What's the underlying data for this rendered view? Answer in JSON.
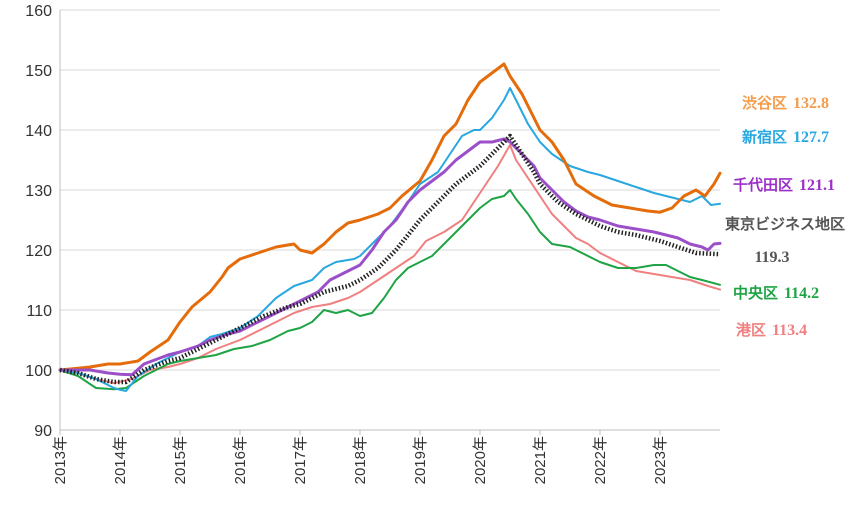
{
  "chart_data": {
    "type": "line",
    "ylim": [
      90,
      160
    ],
    "yticks": [
      "90",
      "100",
      "110",
      "120",
      "130",
      "140",
      "150",
      "160"
    ],
    "xlim": [
      2013.0,
      2024.0
    ],
    "xticks": [
      "2013年",
      "2014年",
      "2015年",
      "2016年",
      "2017年",
      "2018年",
      "2019年",
      "2020年",
      "2021年",
      "2022年",
      "2023年"
    ],
    "series": [
      {
        "name": "渋谷区",
        "value_label": "132.8",
        "color": "#E46C0A",
        "text_color": "#F39C4B",
        "points": [
          [
            2013.0,
            100
          ],
          [
            2013.3,
            100.3
          ],
          [
            2013.5,
            100.5
          ],
          [
            2013.8,
            101
          ],
          [
            2014.0,
            101
          ],
          [
            2014.3,
            101.5
          ],
          [
            2014.5,
            103
          ],
          [
            2014.8,
            105
          ],
          [
            2015.0,
            108
          ],
          [
            2015.2,
            110.5
          ],
          [
            2015.5,
            113
          ],
          [
            2015.7,
            115.5
          ],
          [
            2015.8,
            117
          ],
          [
            2016.0,
            118.5
          ],
          [
            2016.3,
            119.5
          ],
          [
            2016.6,
            120.5
          ],
          [
            2016.9,
            121
          ],
          [
            2017.0,
            120
          ],
          [
            2017.2,
            119.5
          ],
          [
            2017.4,
            121
          ],
          [
            2017.6,
            123
          ],
          [
            2017.8,
            124.5
          ],
          [
            2018.0,
            125
          ],
          [
            2018.3,
            126
          ],
          [
            2018.5,
            127
          ],
          [
            2018.7,
            129
          ],
          [
            2019.0,
            131.5
          ],
          [
            2019.2,
            135
          ],
          [
            2019.4,
            139
          ],
          [
            2019.6,
            141
          ],
          [
            2019.8,
            145
          ],
          [
            2020.0,
            148
          ],
          [
            2020.2,
            149.5
          ],
          [
            2020.4,
            151
          ],
          [
            2020.5,
            149
          ],
          [
            2020.7,
            146
          ],
          [
            2020.9,
            142
          ],
          [
            2021.0,
            140
          ],
          [
            2021.2,
            138
          ],
          [
            2021.4,
            135
          ],
          [
            2021.6,
            131
          ],
          [
            2021.9,
            129
          ],
          [
            2022.2,
            127.5
          ],
          [
            2022.5,
            127
          ],
          [
            2022.8,
            126.5
          ],
          [
            2023.0,
            126.3
          ],
          [
            2023.2,
            127
          ],
          [
            2023.4,
            129
          ],
          [
            2023.6,
            130
          ],
          [
            2023.75,
            129
          ],
          [
            2023.9,
            131
          ],
          [
            2024.0,
            132.8
          ]
        ]
      },
      {
        "name": "新宿区",
        "value_label": "127.7",
        "color": "#29A8E0",
        "text_color": "#29A8E0",
        "points": [
          [
            2013.0,
            100
          ],
          [
            2013.3,
            99.5
          ],
          [
            2013.6,
            98.5
          ],
          [
            2013.9,
            97
          ],
          [
            2014.0,
            96.7
          ],
          [
            2014.1,
            96.5
          ],
          [
            2014.3,
            99
          ],
          [
            2014.6,
            101
          ],
          [
            2015.0,
            103
          ],
          [
            2015.3,
            104
          ],
          [
            2015.5,
            105.5
          ],
          [
            2015.7,
            106
          ],
          [
            2016.0,
            107
          ],
          [
            2016.3,
            109
          ],
          [
            2016.6,
            112
          ],
          [
            2016.9,
            114
          ],
          [
            2017.2,
            115
          ],
          [
            2017.4,
            117
          ],
          [
            2017.6,
            118
          ],
          [
            2017.9,
            118.5
          ],
          [
            2018.0,
            119
          ],
          [
            2018.2,
            121
          ],
          [
            2018.5,
            124
          ],
          [
            2018.8,
            128
          ],
          [
            2019.0,
            131
          ],
          [
            2019.3,
            133
          ],
          [
            2019.5,
            136
          ],
          [
            2019.7,
            139
          ],
          [
            2019.9,
            140
          ],
          [
            2020.0,
            140
          ],
          [
            2020.2,
            142
          ],
          [
            2020.4,
            145
          ],
          [
            2020.5,
            147
          ],
          [
            2020.6,
            145
          ],
          [
            2020.8,
            141
          ],
          [
            2021.0,
            138
          ],
          [
            2021.2,
            136
          ],
          [
            2021.5,
            134
          ],
          [
            2021.8,
            133
          ],
          [
            2022.0,
            132.5
          ],
          [
            2022.3,
            131.5
          ],
          [
            2022.6,
            130.5
          ],
          [
            2022.9,
            129.5
          ],
          [
            2023.1,
            129
          ],
          [
            2023.3,
            128.5
          ],
          [
            2023.5,
            128
          ],
          [
            2023.7,
            129
          ],
          [
            2023.85,
            127.5
          ],
          [
            2024.0,
            127.7
          ]
        ]
      },
      {
        "name": "千代田区",
        "value_label": "121.1",
        "color": "#9B4FC8",
        "text_color": "#9B30C8",
        "points": [
          [
            2013.0,
            100
          ],
          [
            2013.5,
            100
          ],
          [
            2013.8,
            99.5
          ],
          [
            2014.0,
            99.3
          ],
          [
            2014.2,
            99.2
          ],
          [
            2014.4,
            101
          ],
          [
            2014.8,
            102.5
          ],
          [
            2015.0,
            103
          ],
          [
            2015.3,
            104
          ],
          [
            2015.5,
            105
          ],
          [
            2015.8,
            106
          ],
          [
            2016.0,
            106.5
          ],
          [
            2016.3,
            108
          ],
          [
            2016.6,
            109.5
          ],
          [
            2016.9,
            111
          ],
          [
            2017.1,
            112
          ],
          [
            2017.3,
            113
          ],
          [
            2017.5,
            115
          ],
          [
            2017.7,
            116
          ],
          [
            2017.9,
            117
          ],
          [
            2018.0,
            117.5
          ],
          [
            2018.2,
            120
          ],
          [
            2018.4,
            123
          ],
          [
            2018.6,
            125
          ],
          [
            2018.8,
            128
          ],
          [
            2019.0,
            130
          ],
          [
            2019.2,
            131.5
          ],
          [
            2019.4,
            133
          ],
          [
            2019.6,
            135
          ],
          [
            2019.8,
            136.5
          ],
          [
            2020.0,
            138
          ],
          [
            2020.2,
            138
          ],
          [
            2020.4,
            138.5
          ],
          [
            2020.5,
            138
          ],
          [
            2020.7,
            136
          ],
          [
            2020.9,
            134
          ],
          [
            2021.0,
            132
          ],
          [
            2021.2,
            130
          ],
          [
            2021.4,
            128
          ],
          [
            2021.6,
            126.5
          ],
          [
            2021.8,
            125.5
          ],
          [
            2022.0,
            125
          ],
          [
            2022.3,
            124
          ],
          [
            2022.6,
            123.5
          ],
          [
            2022.9,
            123
          ],
          [
            2023.1,
            122.5
          ],
          [
            2023.3,
            122
          ],
          [
            2023.5,
            121
          ],
          [
            2023.7,
            120.5
          ],
          [
            2023.8,
            120
          ],
          [
            2023.9,
            121
          ],
          [
            2024.0,
            121.1
          ]
        ]
      },
      {
        "name": "東京ビジネス地区",
        "value_label": "119.3",
        "color": "#222222",
        "text_color": "#555555",
        "points": [
          [
            2013.0,
            100
          ],
          [
            2013.3,
            99.5
          ],
          [
            2013.6,
            98.5
          ],
          [
            2013.9,
            98
          ],
          [
            2014.1,
            98
          ],
          [
            2014.4,
            100
          ],
          [
            2014.8,
            101.5
          ],
          [
            2015.0,
            102
          ],
          [
            2015.4,
            104
          ],
          [
            2015.8,
            106
          ],
          [
            2016.0,
            107
          ],
          [
            2016.4,
            109
          ],
          [
            2016.8,
            110.5
          ],
          [
            2017.0,
            111
          ],
          [
            2017.4,
            113
          ],
          [
            2017.8,
            114
          ],
          [
            2018.0,
            115
          ],
          [
            2018.3,
            117
          ],
          [
            2018.6,
            120
          ],
          [
            2019.0,
            125
          ],
          [
            2019.3,
            128
          ],
          [
            2019.6,
            131
          ],
          [
            2020.0,
            134
          ],
          [
            2020.2,
            136
          ],
          [
            2020.4,
            138
          ],
          [
            2020.5,
            139
          ],
          [
            2020.7,
            136
          ],
          [
            2020.9,
            133
          ],
          [
            2021.0,
            131
          ],
          [
            2021.3,
            128
          ],
          [
            2021.6,
            126
          ],
          [
            2022.0,
            124
          ],
          [
            2022.3,
            123
          ],
          [
            2022.6,
            122.5
          ],
          [
            2023.0,
            121.5
          ],
          [
            2023.3,
            120.5
          ],
          [
            2023.6,
            119.5
          ],
          [
            2024.0,
            119.3
          ]
        ]
      },
      {
        "name": "中央区",
        "value_label": "114.2",
        "color": "#1EA345",
        "text_color": "#1EA345",
        "points": [
          [
            2013.0,
            100
          ],
          [
            2013.3,
            99
          ],
          [
            2013.6,
            97
          ],
          [
            2013.9,
            96.8
          ],
          [
            2014.1,
            97
          ],
          [
            2014.4,
            99
          ],
          [
            2014.8,
            101
          ],
          [
            2015.0,
            101.5
          ],
          [
            2015.3,
            102
          ],
          [
            2015.6,
            102.5
          ],
          [
            2015.9,
            103.5
          ],
          [
            2016.2,
            104
          ],
          [
            2016.5,
            105
          ],
          [
            2016.8,
            106.5
          ],
          [
            2017.0,
            107
          ],
          [
            2017.2,
            108
          ],
          [
            2017.4,
            110
          ],
          [
            2017.6,
            109.5
          ],
          [
            2017.8,
            110
          ],
          [
            2018.0,
            109
          ],
          [
            2018.2,
            109.5
          ],
          [
            2018.4,
            112
          ],
          [
            2018.6,
            115
          ],
          [
            2018.8,
            117
          ],
          [
            2019.0,
            118
          ],
          [
            2019.2,
            119
          ],
          [
            2019.4,
            121
          ],
          [
            2019.6,
            123
          ],
          [
            2019.8,
            125
          ],
          [
            2020.0,
            127
          ],
          [
            2020.2,
            128.5
          ],
          [
            2020.4,
            129
          ],
          [
            2020.5,
            130
          ],
          [
            2020.6,
            128.5
          ],
          [
            2020.8,
            126
          ],
          [
            2021.0,
            123
          ],
          [
            2021.2,
            121
          ],
          [
            2021.5,
            120.5
          ],
          [
            2021.8,
            119
          ],
          [
            2022.0,
            118
          ],
          [
            2022.3,
            117
          ],
          [
            2022.6,
            117
          ],
          [
            2022.9,
            117.5
          ],
          [
            2023.1,
            117.5
          ],
          [
            2023.3,
            116.5
          ],
          [
            2023.5,
            115.5
          ],
          [
            2023.7,
            115
          ],
          [
            2024.0,
            114.2
          ]
        ]
      },
      {
        "name": "港区",
        "value_label": "113.4",
        "color": "#F08080",
        "text_color": "#F08080",
        "points": [
          [
            2013.0,
            100
          ],
          [
            2013.3,
            99.5
          ],
          [
            2013.6,
            98.5
          ],
          [
            2013.9,
            97.8
          ],
          [
            2014.2,
            98.5
          ],
          [
            2014.5,
            100
          ],
          [
            2014.8,
            100.5
          ],
          [
            2015.0,
            101
          ],
          [
            2015.3,
            102
          ],
          [
            2015.6,
            103.5
          ],
          [
            2016.0,
            105
          ],
          [
            2016.3,
            106.5
          ],
          [
            2016.6,
            108
          ],
          [
            2016.9,
            109.5
          ],
          [
            2017.2,
            110.5
          ],
          [
            2017.5,
            111
          ],
          [
            2017.8,
            112
          ],
          [
            2018.0,
            113
          ],
          [
            2018.3,
            115
          ],
          [
            2018.6,
            117
          ],
          [
            2018.9,
            119
          ],
          [
            2019.1,
            121.5
          ],
          [
            2019.4,
            123
          ],
          [
            2019.7,
            125
          ],
          [
            2019.9,
            128
          ],
          [
            2020.1,
            131
          ],
          [
            2020.3,
            134
          ],
          [
            2020.5,
            137.5
          ],
          [
            2020.6,
            135
          ],
          [
            2020.8,
            132
          ],
          [
            2021.0,
            129
          ],
          [
            2021.2,
            126
          ],
          [
            2021.4,
            124
          ],
          [
            2021.6,
            122
          ],
          [
            2021.8,
            121
          ],
          [
            2022.0,
            119.5
          ],
          [
            2022.3,
            118
          ],
          [
            2022.6,
            116.5
          ],
          [
            2022.9,
            116
          ],
          [
            2023.2,
            115.5
          ],
          [
            2023.5,
            115
          ],
          [
            2023.8,
            114
          ],
          [
            2024.0,
            113.4
          ]
        ]
      }
    ]
  }
}
